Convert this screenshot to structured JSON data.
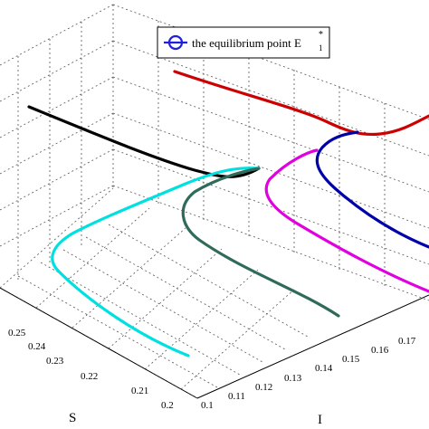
{
  "chart_data": {
    "type": "line",
    "projection": "3d",
    "title": "",
    "xlabel": "S",
    "ylabel": "I",
    "zlabel": "",
    "grid": true,
    "legend_position": "top-right",
    "legend": {
      "label_main": "the equilibrium point E",
      "label_sub": "1",
      "label_sup": "*",
      "marker": "circle-line",
      "color": "#1f1fdc"
    },
    "axes": {
      "S": {
        "range": [
          0.2,
          0.25
        ],
        "ticks": [
          "0.2",
          "0.21",
          "0.22",
          "0.23",
          "0.24",
          "0.25"
        ]
      },
      "I": {
        "range": [
          0.1,
          0.17
        ],
        "ticks": [
          "0.1",
          "0.11",
          "0.12",
          "0.13",
          "0.14",
          "0.15",
          "0.16",
          "0.17"
        ]
      }
    },
    "series": [
      {
        "color": "#000000"
      },
      {
        "color": "#cc0000"
      },
      {
        "color": "#00e0e0"
      },
      {
        "color": "#2f6b5a"
      },
      {
        "color": "#e000e0"
      },
      {
        "color": "#0000aa"
      }
    ]
  }
}
